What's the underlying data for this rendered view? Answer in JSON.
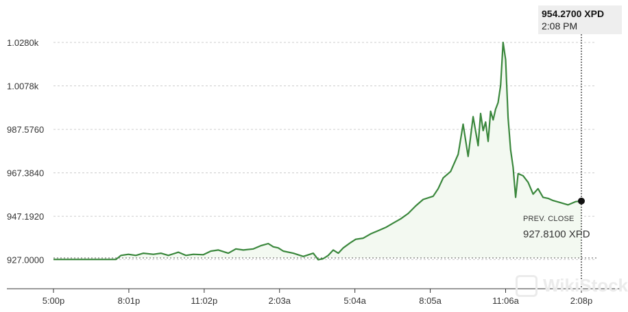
{
  "chart_data": {
    "type": "area",
    "y_ticks": [
      "1.0280k",
      "1.0078k",
      "987.5760",
      "967.3840",
      "947.1920",
      "927.0000"
    ],
    "y_tick_values": [
      1028.0,
      1007.8,
      987.576,
      967.384,
      947.192,
      927.0
    ],
    "ylim": [
      913.5,
      1028.0
    ],
    "x_ticks": [
      "5:00p",
      "8:01p",
      "11:02p",
      "2:03a",
      "5:04a",
      "8:05a",
      "11:06a",
      "2:08p"
    ],
    "x_tick_hours": [
      0,
      3.0167,
      6.0333,
      9.05,
      12.0667,
      15.0833,
      18.1,
      21.1333
    ],
    "xlim": [
      0,
      21.1333
    ],
    "prev_close": 927.81,
    "series": [
      {
        "x": [
          0,
          1.0,
          2.0,
          2.5,
          2.7,
          3.0,
          3.3,
          3.6,
          4.0,
          4.3,
          4.6,
          5.0,
          5.3,
          5.6,
          6.0,
          6.3,
          6.6,
          7.0,
          7.3,
          7.6,
          8.0,
          8.3,
          8.6,
          8.8,
          9.0,
          9.2,
          9.6,
          10.0,
          10.4,
          10.6,
          10.8,
          11.0,
          11.2,
          11.4,
          11.6,
          11.9,
          12.1,
          12.4,
          12.7,
          13.0,
          13.3,
          13.6,
          13.9,
          14.2,
          14.5,
          14.8,
          15.2,
          15.4,
          15.6,
          15.9,
          16.2,
          16.4,
          16.6,
          16.8,
          17.0,
          17.1,
          17.2,
          17.3,
          17.4,
          17.5,
          17.6,
          17.7,
          17.8,
          17.9,
          18.0,
          18.1,
          18.2,
          18.3,
          18.4,
          18.5,
          18.6,
          18.8,
          19.0,
          19.2,
          19.4,
          19.6,
          19.8,
          20.0,
          20.3,
          20.6,
          20.9,
          21.1333
        ],
        "y": [
          927.1,
          927.1,
          927.1,
          927.1,
          929.0,
          929.5,
          929.0,
          930.0,
          929.5,
          930.0,
          929.0,
          930.5,
          929.0,
          929.5,
          929.3,
          931.0,
          931.5,
          930.0,
          932.0,
          931.5,
          932.0,
          933.5,
          934.5,
          933.0,
          932.5,
          931.0,
          930.0,
          928.5,
          930.0,
          927.0,
          927.5,
          929.0,
          931.5,
          930.0,
          932.5,
          935.0,
          936.5,
          937.0,
          939.0,
          940.5,
          942.0,
          944.0,
          946.0,
          948.5,
          952.0,
          955.0,
          956.5,
          960.0,
          965.0,
          968.0,
          976.0,
          990.0,
          975.0,
          993.5,
          980.0,
          995.0,
          987.0,
          991.0,
          982.0,
          996.0,
          992.0,
          997.0,
          1000.0,
          1008.0,
          1028.0,
          1020.0,
          993.0,
          978.0,
          970.0,
          956.0,
          967.0,
          966.0,
          963.0,
          957.5,
          960.0,
          956.0,
          955.5,
          954.5,
          953.5,
          952.5,
          954.0,
          954.27
        ]
      }
    ]
  },
  "tooltip": {
    "price": "954.2700 XPD",
    "time": "2:08 PM"
  },
  "prev_close": {
    "title": "PREV. CLOSE",
    "value": "927.8100 XPD"
  },
  "watermark": "WikiStock",
  "colors": {
    "line": "#3a873c",
    "fill": "#f3f9f1",
    "grid": "#cccccc",
    "dot": "#111111"
  }
}
